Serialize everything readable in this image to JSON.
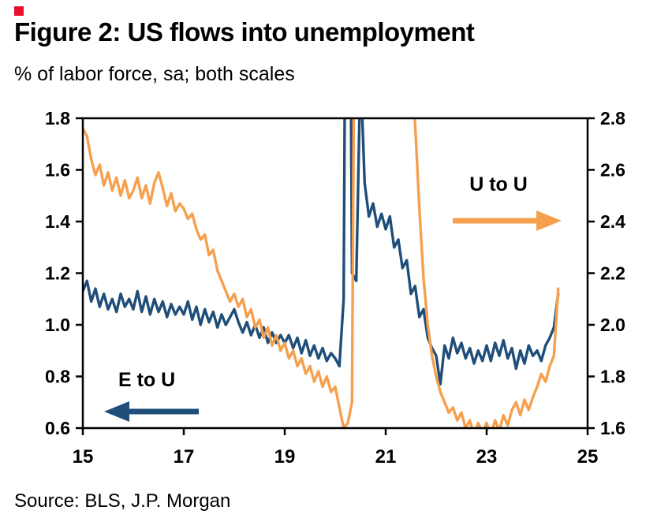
{
  "header": {
    "marker_color": "#e8112d",
    "title": "Figure 2: US flows into unemployment",
    "subtitle": "% of labor force, sa; both scales"
  },
  "footer": {
    "source": "Source: BLS, J.P. Morgan"
  },
  "chart_data": {
    "type": "line",
    "title": "Figure 2: US flows into unemployment",
    "subtitle": "% of labor force, sa; both scales",
    "x_start_year": 2015,
    "x_frequency": "monthly",
    "xlim": [
      2015,
      2025
    ],
    "x_ticks": [
      15,
      17,
      19,
      21,
      23,
      25
    ],
    "grid": false,
    "left_axis": {
      "range": [
        0.6,
        1.8
      ],
      "ticks": [
        1.8,
        1.6,
        1.4,
        1.2,
        1.0,
        0.8,
        0.6
      ]
    },
    "right_axis": {
      "range": [
        1.6,
        2.8
      ],
      "ticks": [
        2.8,
        2.6,
        2.4,
        2.2,
        2.0,
        1.8,
        1.6
      ]
    },
    "series": [
      {
        "name": "E to U",
        "axis": "left",
        "color": "#1f4e7a",
        "values": [
          1.13,
          1.17,
          1.09,
          1.14,
          1.07,
          1.12,
          1.06,
          1.1,
          1.05,
          1.12,
          1.07,
          1.1,
          1.06,
          1.13,
          1.05,
          1.11,
          1.04,
          1.1,
          1.05,
          1.09,
          1.03,
          1.08,
          1.04,
          1.07,
          1.04,
          1.09,
          1.02,
          1.07,
          1.0,
          1.06,
          1.01,
          1.05,
          0.99,
          1.04,
          1.0,
          1.03,
          1.06,
          1.01,
          0.97,
          1.01,
          0.96,
          1.0,
          0.95,
          0.99,
          0.93,
          0.97,
          0.93,
          0.96,
          0.93,
          0.96,
          0.91,
          0.95,
          0.89,
          0.94,
          0.88,
          0.92,
          0.87,
          0.91,
          0.86,
          0.89,
          0.87,
          0.84,
          1.1,
          4.0,
          1.2,
          1.17,
          2.0,
          1.55,
          1.42,
          1.47,
          1.38,
          1.43,
          1.37,
          1.42,
          1.3,
          1.33,
          1.22,
          1.25,
          1.12,
          1.15,
          1.03,
          1.06,
          0.95,
          0.91,
          0.88,
          0.77,
          0.92,
          0.87,
          0.95,
          0.89,
          0.93,
          0.87,
          0.91,
          0.85,
          0.9,
          0.86,
          0.92,
          0.86,
          0.93,
          0.88,
          0.94,
          0.87,
          0.91,
          0.83,
          0.9,
          0.85,
          0.92,
          0.88,
          0.9,
          0.86,
          0.92,
          0.95,
          0.99,
          1.12
        ]
      },
      {
        "name": "U to U",
        "axis": "right",
        "color": "#f6a04e",
        "values": [
          2.76,
          2.73,
          2.64,
          2.58,
          2.62,
          2.54,
          2.59,
          2.52,
          2.57,
          2.5,
          2.56,
          2.49,
          2.52,
          2.57,
          2.49,
          2.54,
          2.47,
          2.55,
          2.59,
          2.53,
          2.46,
          2.51,
          2.44,
          2.47,
          2.45,
          2.41,
          2.43,
          2.37,
          2.33,
          2.35,
          2.27,
          2.29,
          2.21,
          2.17,
          2.13,
          2.09,
          2.12,
          2.07,
          2.1,
          2.03,
          2.06,
          1.99,
          2.02,
          1.95,
          1.99,
          1.92,
          1.96,
          1.9,
          1.93,
          1.87,
          1.9,
          1.84,
          1.87,
          1.81,
          1.84,
          1.78,
          1.82,
          1.76,
          1.8,
          1.74,
          1.76,
          1.68,
          1.6,
          1.62,
          1.7,
          4.5,
          6.0,
          5.8,
          5.4,
          5.0,
          4.7,
          4.4,
          4.2,
          4.0,
          3.8,
          3.6,
          3.4,
          3.2,
          3.0,
          2.78,
          2.45,
          2.18,
          2.0,
          1.88,
          1.8,
          1.74,
          1.7,
          1.66,
          1.68,
          1.63,
          1.66,
          1.6,
          1.63,
          1.57,
          1.62,
          1.58,
          1.62,
          1.57,
          1.63,
          1.59,
          1.65,
          1.61,
          1.67,
          1.7,
          1.65,
          1.71,
          1.67,
          1.72,
          1.76,
          1.81,
          1.78,
          1.84,
          1.88,
          2.14
        ]
      }
    ],
    "annotations": [
      {
        "label": "U to U",
        "series": "U to U",
        "arrow": "right"
      },
      {
        "label": "E to U",
        "series": "E to U",
        "arrow": "left"
      }
    ]
  }
}
